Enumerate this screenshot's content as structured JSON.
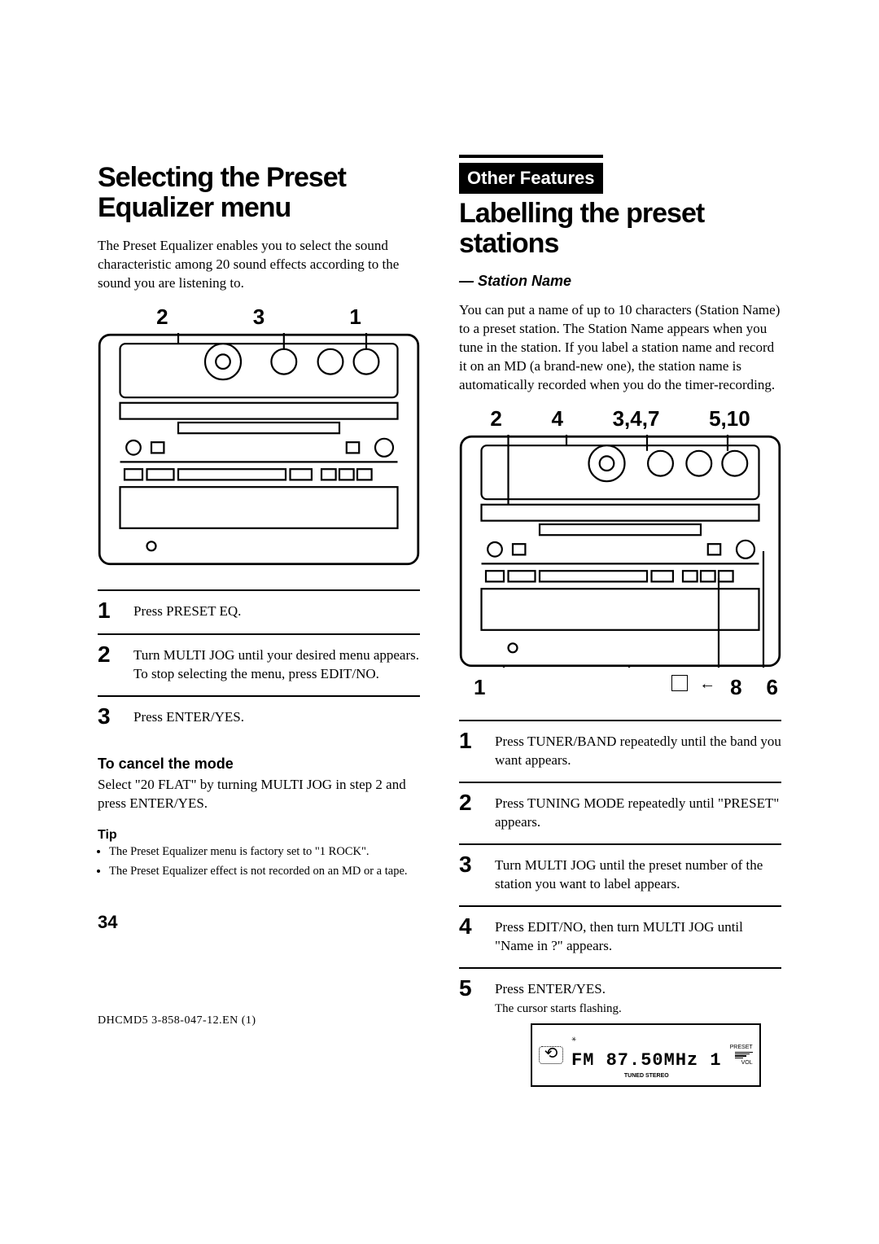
{
  "page_number": "34",
  "doc_code": "DHCMD5  3-858-047-12.EN (1)",
  "left": {
    "title": "Selecting the Preset Equalizer menu",
    "intro": "The Preset Equalizer enables you to select the sound characteristic among 20 sound effects according to the sound you are listening to.",
    "callouts_top": [
      "2",
      "3",
      "1"
    ],
    "steps": [
      {
        "n": "1",
        "text": "Press PRESET EQ."
      },
      {
        "n": "2",
        "text": "Turn MULTI JOG until your desired menu appears.\nTo stop selecting the menu, press EDIT/NO."
      },
      {
        "n": "3",
        "text": "Press ENTER/YES."
      }
    ],
    "cancel_head": "To cancel the mode",
    "cancel_body": "Select \"20 FLAT\" by turning MULTI JOG in step 2 and press ENTER/YES.",
    "tip_head": "Tip",
    "tips": [
      "The Preset Equalizer menu is factory set to \"1 ROCK\".",
      "The Preset Equalizer effect is not recorded on an MD or a tape."
    ]
  },
  "right": {
    "section_label": "Other Features",
    "title": "Labelling the preset stations",
    "subtitle": "— Station Name",
    "intro": "You can put a name of up to 10 characters (Station Name) to a preset station.  The Station Name appears when you tune in the station.  If you label a station name and record it on an MD (a brand-new one), the station name is automatically recorded when you do the timer-recording.",
    "callouts_top": [
      "2",
      "4",
      "3,4,7",
      "5,10"
    ],
    "callouts_bottom_left": "1",
    "callouts_bottom_mid_box": "□",
    "callouts_bottom_arrow": "←",
    "callouts_bottom_right": [
      "8",
      "6"
    ],
    "steps": [
      {
        "n": "1",
        "text": "Press TUNER/BAND repeatedly until the band you want appears."
      },
      {
        "n": "2",
        "text": "Press TUNING MODE repeatedly until \"PRESET\" appears."
      },
      {
        "n": "3",
        "text": "Turn MULTI JOG until the preset number of the station you want to label appears."
      },
      {
        "n": "4",
        "text": "Press EDIT/NO, then turn MULTI JOG until \"Name in ?\" appears."
      },
      {
        "n": "5",
        "text": "Press ENTER/YES.",
        "sub": "The cursor starts flashing."
      }
    ],
    "lcd": {
      "line": "FM 87.50MHz 1",
      "sub_left": "TUNED STEREO",
      "sub_right": "PRESET",
      "vol_label": "VOL"
    }
  },
  "colors": {
    "text": "#000000",
    "bg": "#ffffff",
    "rule": "#000000"
  }
}
